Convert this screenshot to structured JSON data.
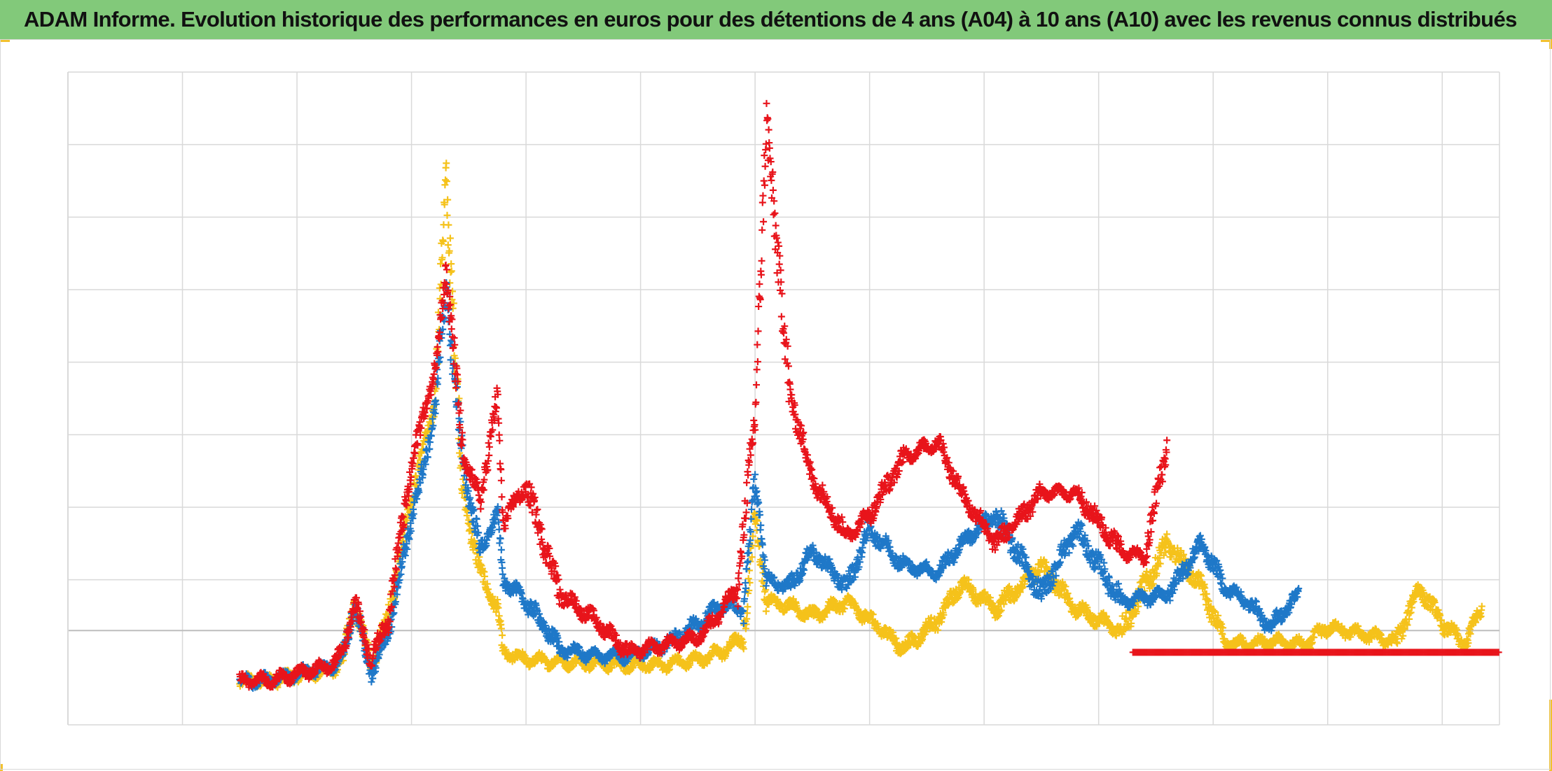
{
  "title": "ADAM Informe. Evolution historique des performances en euros pour des détentions de 4 ans (A04) à 10 ans (A10) avec les revenus connus distribués",
  "colors": {
    "title_bg": "#82c97a",
    "corner_accent": "#f2c12e",
    "grid": "#d9d9d9",
    "zero_line": "#bdbdbd"
  },
  "chart_data": {
    "type": "scatter",
    "marker": "plus",
    "title": "ADAM Informe. Evolution historique des performances en euros pour des détentions de 4 ans (A04) à 10 ans (A10) avec les revenus connus distribués",
    "xlabel": "",
    "ylabel": "",
    "xlim": [
      0,
      12.5
    ],
    "ylim": [
      -1.3,
      7.7
    ],
    "grid": true,
    "legend": "none",
    "vertical_gridlines": [
      0,
      1,
      2,
      3,
      4,
      5,
      6,
      7,
      8,
      9,
      10,
      11,
      12,
      12.5
    ],
    "horizontal_gridlines": [
      -1.3,
      0,
      0.7,
      1.7,
      2.7,
      3.7,
      4.7,
      5.7,
      6.7,
      7.7
    ],
    "series": [
      {
        "color": "#f5c21b",
        "x": [
          1.5,
          1.8,
          2.0,
          2.3,
          2.4,
          2.5,
          2.65,
          2.8,
          2.95,
          3.1,
          3.2,
          3.3,
          3.45,
          3.6,
          3.75,
          3.8,
          4.0,
          4.3,
          4.6,
          4.9,
          5.2,
          5.5,
          5.7,
          5.9,
          6.0,
          6.1,
          6.3,
          6.5,
          6.8,
          7.0,
          7.3,
          7.6,
          7.8,
          8.1,
          8.5,
          8.8,
          9.2,
          9.6,
          9.9,
          10.1,
          10.3,
          10.5,
          10.8,
          11.0,
          11.3,
          11.6,
          11.8,
          12.0,
          12.2,
          12.35
        ],
        "y": [
          -0.7,
          -0.68,
          -0.62,
          -0.55,
          -0.4,
          0.4,
          -0.5,
          0.2,
          1.5,
          2.5,
          3.1,
          6.2,
          1.9,
          0.8,
          0.3,
          -0.3,
          -0.4,
          -0.43,
          -0.45,
          -0.48,
          -0.47,
          -0.4,
          -0.3,
          -0.1,
          1.6,
          0.4,
          0.35,
          0.2,
          0.4,
          0.15,
          -0.25,
          0.15,
          0.65,
          0.3,
          0.9,
          0.3,
          0.0,
          1.2,
          0.6,
          -0.15,
          -0.2,
          -0.15,
          -0.2,
          0.05,
          -0.05,
          -0.15,
          0.6,
          0.1,
          -0.2,
          0.35
        ]
      },
      {
        "color": "#1f78c8",
        "x": [
          1.5,
          1.8,
          2.0,
          2.3,
          2.4,
          2.5,
          2.65,
          2.8,
          2.95,
          3.1,
          3.2,
          3.3,
          3.45,
          3.6,
          3.75,
          3.8,
          4.0,
          4.3,
          4.6,
          4.9,
          5.2,
          5.5,
          5.7,
          5.9,
          6.0,
          6.1,
          6.3,
          6.5,
          6.8,
          7.0,
          7.3,
          7.6,
          7.8,
          8.1,
          8.5,
          8.8,
          9.2,
          9.6,
          9.9,
          10.1,
          10.3,
          10.5,
          10.75
        ],
        "y": [
          -0.7,
          -0.68,
          -0.6,
          -0.5,
          -0.35,
          0.35,
          -0.6,
          0.0,
          1.2,
          2.2,
          3.0,
          4.7,
          2.3,
          1.1,
          1.6,
          0.7,
          0.4,
          -0.25,
          -0.35,
          -0.35,
          -0.2,
          0.1,
          0.35,
          0.3,
          2.1,
          0.7,
          0.6,
          1.1,
          0.6,
          1.4,
          0.9,
          0.8,
          1.2,
          1.6,
          0.5,
          1.4,
          0.4,
          0.5,
          1.2,
          0.6,
          0.4,
          0.05,
          0.5
        ]
      },
      {
        "color": "#e8141b",
        "x": [
          1.5,
          1.8,
          2.0,
          2.3,
          2.4,
          2.5,
          2.65,
          2.8,
          2.95,
          3.1,
          3.2,
          3.3,
          3.45,
          3.6,
          3.75,
          3.8,
          4.0,
          4.3,
          4.6,
          4.9,
          5.2,
          5.5,
          5.7,
          5.85,
          6.0,
          6.1,
          6.3,
          6.5,
          6.8,
          7.0,
          7.3,
          7.6,
          7.8,
          8.1,
          8.5,
          8.8,
          9.2,
          9.4,
          9.6
        ],
        "y": [
          -0.7,
          -0.68,
          -0.6,
          -0.48,
          -0.3,
          0.4,
          -0.4,
          0.2,
          1.8,
          3.0,
          3.5,
          5.0,
          2.4,
          1.8,
          3.2,
          1.5,
          2.0,
          0.5,
          0.15,
          -0.3,
          -0.2,
          -0.1,
          0.25,
          0.6,
          3.0,
          7.0,
          3.3,
          2.1,
          1.3,
          1.6,
          2.4,
          2.6,
          1.9,
          1.2,
          1.9,
          1.9,
          1.1,
          1.0,
          2.6
        ]
      },
      {
        "color": "#e8141b",
        "marker": "dense-flat",
        "x": [
          9.3,
          12.5
        ],
        "y": [
          -0.3,
          -0.3
        ]
      }
    ]
  }
}
